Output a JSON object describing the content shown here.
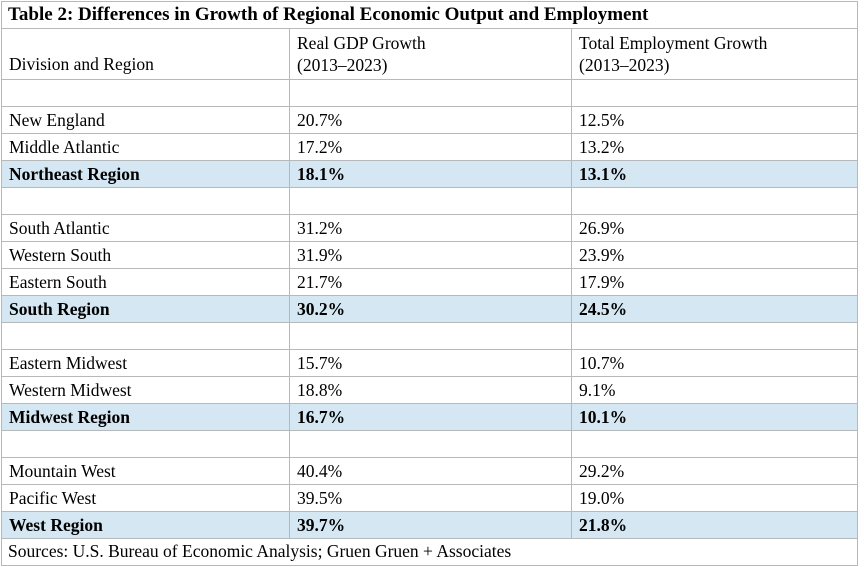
{
  "title": "Table 2: Differences in Growth of Regional Economic Output and Employment",
  "header": {
    "col1": "Division and Region",
    "col2": {
      "line1": "Real GDP Growth",
      "line2": "(2013–2023)"
    },
    "col3": {
      "line1": "Total Employment Growth",
      "line2": "(2013–2023)"
    }
  },
  "rows": [
    {
      "type": "spacer",
      "name": "",
      "gdp": "",
      "emp": ""
    },
    {
      "type": "data",
      "name": "New England",
      "gdp": "20.7%",
      "emp": "12.5%"
    },
    {
      "type": "data",
      "name": "Middle Atlantic",
      "gdp": "17.2%",
      "emp": "13.2%"
    },
    {
      "type": "region",
      "name": "Northeast Region",
      "gdp": "18.1%",
      "emp": "13.1%"
    },
    {
      "type": "spacer",
      "name": "",
      "gdp": "",
      "emp": ""
    },
    {
      "type": "data",
      "name": "South Atlantic",
      "gdp": "31.2%",
      "emp": "26.9%"
    },
    {
      "type": "data",
      "name": "Western South",
      "gdp": "31.9%",
      "emp": "23.9%"
    },
    {
      "type": "data",
      "name": "Eastern South",
      "gdp": "21.7%",
      "emp": "17.9%"
    },
    {
      "type": "region",
      "name": "South Region",
      "gdp": "30.2%",
      "emp": "24.5%"
    },
    {
      "type": "spacer",
      "name": "",
      "gdp": "",
      "emp": ""
    },
    {
      "type": "data",
      "name": "Eastern Midwest",
      "gdp": "15.7%",
      "emp": "10.7%"
    },
    {
      "type": "data",
      "name": "Western Midwest",
      "gdp": "18.8%",
      "emp": "9.1%"
    },
    {
      "type": "region",
      "name": "Midwest Region",
      "gdp": "16.7%",
      "emp": "10.1%"
    },
    {
      "type": "spacer",
      "name": "",
      "gdp": "",
      "emp": ""
    },
    {
      "type": "data",
      "name": "Mountain West",
      "gdp": "40.4%",
      "emp": "29.2%"
    },
    {
      "type": "data",
      "name": "Pacific West",
      "gdp": "39.5%",
      "emp": "19.0%"
    },
    {
      "type": "region",
      "name": "West Region",
      "gdp": "39.7%",
      "emp": "21.8%"
    }
  ],
  "footer": "Sources: U.S. Bureau of Economic Analysis; Gruen Gruen + Associates",
  "colors": {
    "highlight": "#d4e7f2",
    "border": "#b5b9bc",
    "text": "#000000",
    "page_background": "#ffffff"
  }
}
